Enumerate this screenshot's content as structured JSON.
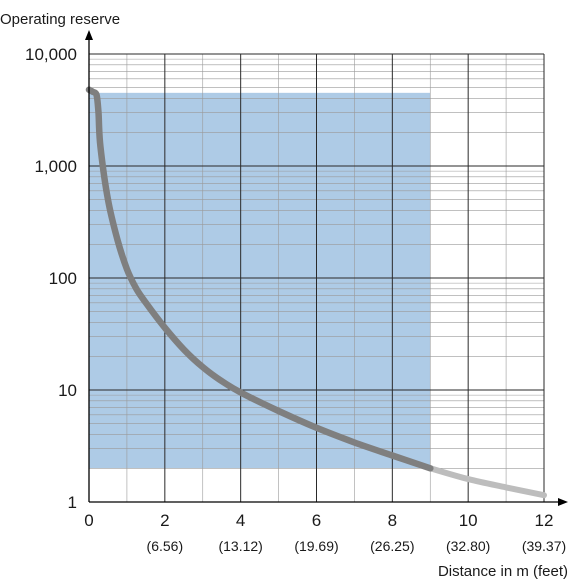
{
  "chart_data": {
    "type": "line",
    "ylabel": "Operating reserve",
    "xlabel": "Distance in m (feet)",
    "y_scale": "log",
    "ylim": [
      1,
      10000
    ],
    "xlim": [
      0,
      12
    ],
    "grid": true,
    "y_ticks": [
      {
        "value": 1,
        "label": "1"
      },
      {
        "value": 10,
        "label": "10"
      },
      {
        "value": 100,
        "label": "100"
      },
      {
        "value": 1000,
        "label": "1,000"
      },
      {
        "value": 10000,
        "label": "10,000"
      }
    ],
    "x_ticks": [
      {
        "value": 0,
        "label": "0",
        "sublabel": ""
      },
      {
        "value": 2,
        "label": "2",
        "sublabel": "(6.56)"
      },
      {
        "value": 4,
        "label": "4",
        "sublabel": "(13.12)"
      },
      {
        "value": 6,
        "label": "6",
        "sublabel": "(19.69)"
      },
      {
        "value": 8,
        "label": "8",
        "sublabel": "(26.25)"
      },
      {
        "value": 10,
        "label": "10",
        "sublabel": "(32.80)"
      },
      {
        "value": 12,
        "label": "12",
        "sublabel": "(39.37)"
      }
    ],
    "shaded_region": {
      "x": [
        0,
        9
      ],
      "y": [
        2,
        4500
      ],
      "color": "#aecbe6"
    },
    "series": [
      {
        "color_main": "#7f7f7f",
        "color_extension": "#bdbdbd",
        "solid_until_x": 9,
        "x": [
          0.0,
          0.1,
          0.2,
          0.25,
          0.3,
          0.5,
          0.75,
          1.0,
          1.25,
          1.5,
          2.0,
          2.5,
          3.0,
          3.5,
          4.0,
          5.0,
          6.0,
          7.0,
          8.0,
          9.0,
          10.0,
          11.0,
          12.0
        ],
        "y": [
          4800,
          4600,
          4300,
          3000,
          1500,
          500,
          220,
          120,
          80,
          60,
          36,
          23,
          16,
          12,
          9.5,
          6.5,
          4.6,
          3.4,
          2.6,
          2.0,
          1.6,
          1.35,
          1.15
        ]
      }
    ]
  }
}
